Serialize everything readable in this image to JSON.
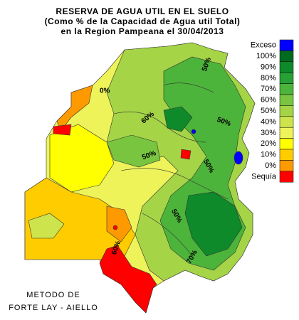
{
  "header": {
    "lines": [
      "RESERVA DE AGUA UTIL EN EL SUELO",
      "(Como % de la Capacidad de Agua util Total)",
      "en la Region Pampeana el 30/04/2013"
    ]
  },
  "legend": {
    "items": [
      {
        "label": "Exceso",
        "color": "#0000ff"
      },
      {
        "label": "100%",
        "color": "#006a1e"
      },
      {
        "label": "90%",
        "color": "#0f8a2a"
      },
      {
        "label": "80%",
        "color": "#27a035"
      },
      {
        "label": "70%",
        "color": "#4cb43a"
      },
      {
        "label": "60%",
        "color": "#79c540"
      },
      {
        "label": "50%",
        "color": "#a5d447"
      },
      {
        "label": "40%",
        "color": "#cde44c"
      },
      {
        "label": "30%",
        "color": "#eef35a"
      },
      {
        "label": "20%",
        "color": "#ffff00"
      },
      {
        "label": "10%",
        "color": "#ffcc00"
      },
      {
        "label": "0%",
        "color": "#ff9900"
      },
      {
        "label": "Sequía",
        "color": "#ff0000"
      }
    ]
  },
  "contour_labels": [
    "50%",
    "60%",
    "50%",
    "50%",
    "50%",
    "50%",
    "60%",
    "70%",
    "0%"
  ],
  "footer": {
    "lines": [
      "METODO DE",
      "FORTE LAY - AIELLO"
    ]
  }
}
